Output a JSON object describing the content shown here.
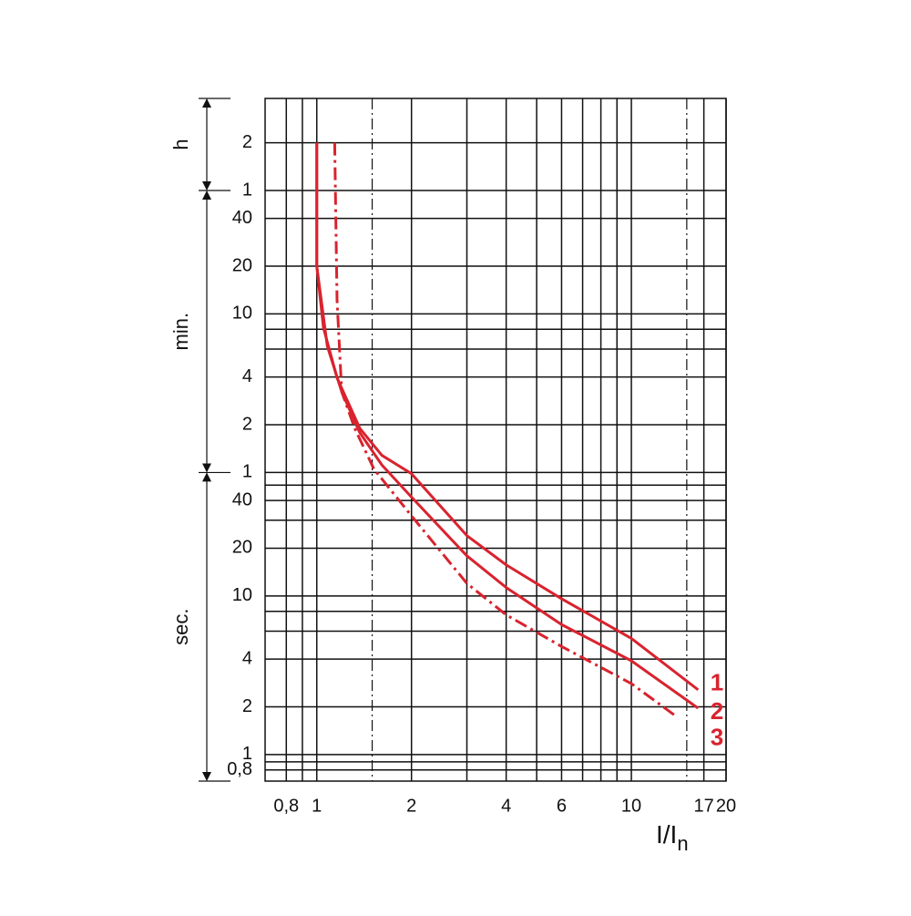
{
  "chart_data": {
    "type": "line",
    "x_label": {
      "main": "I/I",
      "sub": "n"
    },
    "xscale": "log",
    "yscale": "log",
    "grid": true,
    "xlim": [
      0.685,
      20
    ],
    "ylim": [
      0.68,
      13700
    ],
    "xticks": [
      {
        "value": 0.8,
        "label": "0,8"
      },
      1,
      2,
      4,
      6,
      10,
      17,
      20
    ],
    "x_minor_grid": [
      0.9,
      3,
      5,
      7,
      8,
      9
    ],
    "yticks": [
      {
        "value": 0.8,
        "label": "0,8"
      },
      1,
      2,
      4,
      10,
      20,
      40,
      {
        "value": 60,
        "label": "1"
      },
      {
        "value": 120,
        "label": "2"
      },
      {
        "value": 240,
        "label": "4"
      },
      {
        "value": 600,
        "label": "10"
      },
      {
        "value": 1200,
        "label": "20"
      },
      {
        "value": 2400,
        "label": "40"
      },
      {
        "value": 3600,
        "label": "1"
      },
      {
        "value": 7200,
        "label": "2"
      }
    ],
    "y_minor_grid": [
      0.9,
      6,
      8,
      30,
      50,
      360,
      480
    ],
    "reference_lines": [
      1.5,
      15
    ],
    "unit_breaks": [
      60,
      3600
    ],
    "unit_labels": [
      "sec.",
      "min.",
      "h"
    ],
    "series": [
      {
        "name": "1",
        "color": "#d9232e",
        "style": "solid",
        "x": [
          1.0,
          1.0,
          1.05,
          1.16,
          1.37,
          1.61,
          2.0,
          3.0,
          4.0,
          6.0,
          10,
          16.3
        ],
        "values": [
          7200,
          1200,
          490,
          237,
          114,
          77,
          59,
          24,
          15.7,
          9.6,
          5.4,
          2.56
        ]
      },
      {
        "name": "2",
        "color": "#d9232e",
        "style": "solid",
        "x": [
          1.0,
          1.0,
          1.08,
          1.2,
          1.37,
          1.61,
          2.0,
          3.0,
          4.0,
          6.0,
          10,
          16.3
        ],
        "values": [
          7200,
          1200,
          376,
          194,
          107,
          67,
          42,
          17.9,
          11.3,
          6.6,
          3.9,
          1.96
        ]
      },
      {
        "name": "3",
        "color": "#d9232e",
        "style": "dashdot",
        "x": [
          1.14,
          1.16,
          1.2,
          1.32,
          1.52,
          2.0,
          3.0,
          4.0,
          6.0,
          10,
          14.0
        ],
        "values": [
          7200,
          728,
          194,
          114,
          63,
          32,
          12,
          7.6,
          4.8,
          2.8,
          1.72
        ]
      }
    ]
  }
}
